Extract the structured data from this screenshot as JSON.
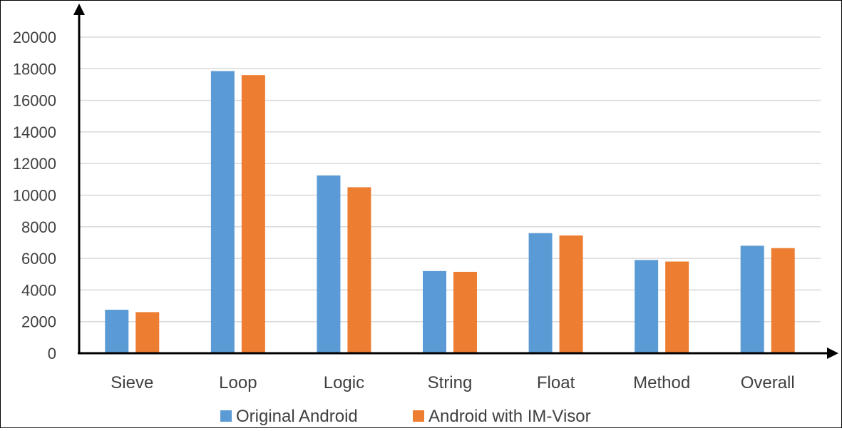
{
  "chart_data": {
    "type": "bar",
    "title": "",
    "xlabel": "",
    "ylabel": "",
    "categories": [
      "Sieve",
      "Loop",
      "Logic",
      "String",
      "Float",
      "Method",
      "Overall"
    ],
    "series": [
      {
        "name": "Original Android",
        "color": "#5b9bd5",
        "values": [
          2750,
          17850,
          11250,
          5200,
          7600,
          5900,
          6800
        ]
      },
      {
        "name": "Android with IM-Visor",
        "color": "#ed7d31",
        "values": [
          2600,
          17600,
          10500,
          5150,
          7450,
          5800,
          6650
        ]
      }
    ],
    "ylim": [
      0,
      20000
    ],
    "yticks": [
      "0",
      "2000",
      "4000",
      "6000",
      "8000",
      "10000",
      "12000",
      "14000",
      "16000",
      "18000",
      "20000"
    ],
    "grid": true,
    "legend_position": "bottom"
  }
}
